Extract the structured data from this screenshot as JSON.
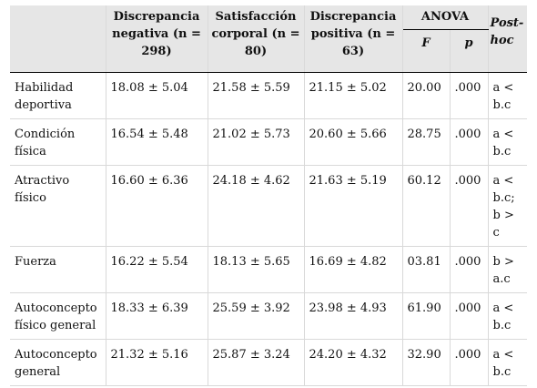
{
  "table": {
    "header": {
      "col_negativa": "Discrepancia negativa (n = 298)",
      "col_satisfaccion": "Satisfacción corporal (n = 80)",
      "col_positiva": "Discrepancia positiva (n = 63)",
      "anova": "ANOVA",
      "anova_f": "F",
      "anova_p": "p",
      "posthoc": "Post-hoc"
    },
    "rows": [
      {
        "label": "Habilidad deportiva",
        "negativa": "18.08 ± 5.04",
        "satisfaccion": "21.58 ± 5.59",
        "positiva": "21.15 ± 5.02",
        "f": "20.00",
        "p": ".000",
        "posthoc": "a < b.c"
      },
      {
        "label": "Condición física",
        "negativa": "16.54 ± 5.48",
        "satisfaccion": "21.02 ± 5.73",
        "positiva": "20.60 ± 5.66",
        "f": "28.75",
        "p": ".000",
        "posthoc": "a < b.c"
      },
      {
        "label": "Atractivo físico",
        "negativa": "16.60 ± 6.36",
        "satisfaccion": "24.18 ± 4.62",
        "positiva": "21.63 ± 5.19",
        "f": "60.12",
        "p": ".000",
        "posthoc": "a < b.c; b > c"
      },
      {
        "label": "Fuerza",
        "negativa": "16.22 ± 5.54",
        "satisfaccion": "18.13 ± 5.65",
        "positiva": "16.69 ± 4.82",
        "f": "03.81",
        "p": ".000",
        "posthoc": "b > a.c"
      },
      {
        "label": "Autoconcepto físico general",
        "negativa": "18.33 ± 6.39",
        "satisfaccion": "25.59 ± 3.92",
        "positiva": "23.98 ± 4.93",
        "f": "61.90",
        "p": ".000",
        "posthoc": "a < b.c"
      },
      {
        "label": "Autoconcepto general",
        "negativa": "21.32 ± 5.16",
        "satisfaccion": "25.87 ± 3.24",
        "positiva": "24.20 ± 4.32",
        "f": "32.90",
        "p": ".000",
        "posthoc": "a < b.c"
      }
    ]
  }
}
